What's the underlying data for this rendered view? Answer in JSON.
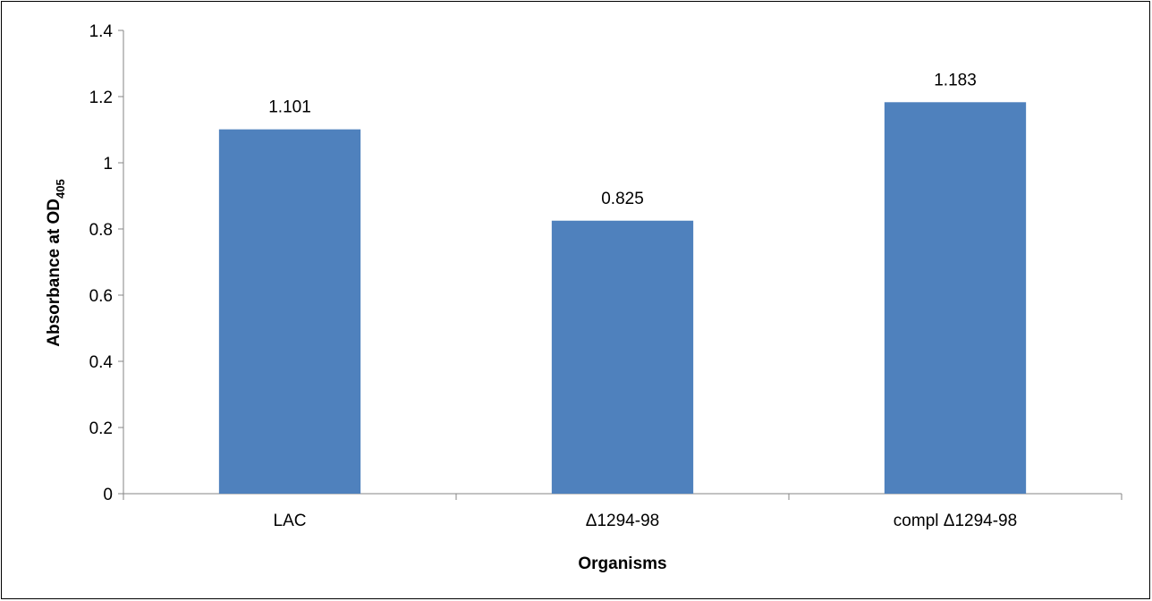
{
  "chart_data": {
    "type": "bar",
    "categories": [
      "LAC",
      "Δ1294-98",
      "compl Δ1294-98"
    ],
    "values": [
      1.101,
      0.825,
      1.183
    ],
    "data_labels": [
      "1.101",
      "0.825",
      "1.183"
    ],
    "xlabel": "Organisms",
    "ylabel": "Absorbance at OD",
    "ylabel_subscript": "405",
    "ylim": [
      0,
      1.4
    ],
    "yticks": [
      "0",
      "0.2",
      "0.4",
      "0.6",
      "0.8",
      "1",
      "1.2",
      "1.4"
    ],
    "bar_color": "#4F81BD",
    "grid": false,
    "legend": "none"
  }
}
